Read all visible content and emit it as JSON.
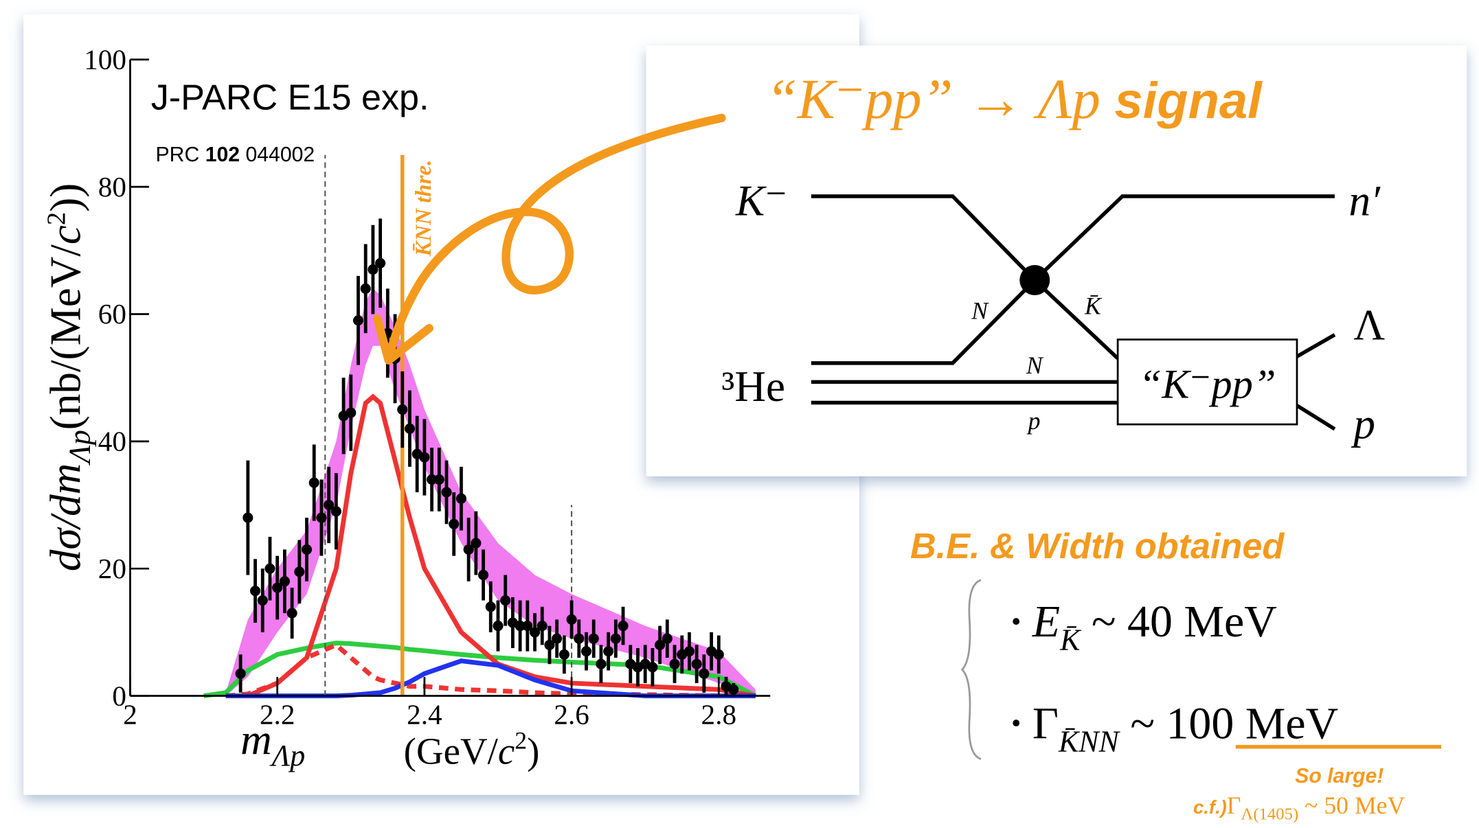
{
  "chart_data": {
    "type": "scatter",
    "experiment": "J-PARC E15 exp.",
    "reference": {
      "journal": "PRC",
      "volume": "102",
      "page": "044002"
    },
    "y_label": {
      "main": "dσ/dm",
      "sub": "Λp",
      "unit_open": "(nb/(MeV/",
      "c": "c",
      "sup": "2",
      "unit_close": "))"
    },
    "x_label": {
      "main": "m",
      "sub": "Λp",
      "unit_open": "(GeV/",
      "c": "c",
      "sup": "2",
      "unit_close": ")"
    },
    "xlim": [
      2,
      2.87
    ],
    "ylim": [
      0,
      100
    ],
    "xticks": [
      2,
      2.2,
      2.4,
      2.6,
      2.8
    ],
    "yticks": [
      0,
      20,
      40,
      60,
      80,
      100
    ],
    "color": "#000000",
    "x": [
      2.15,
      2.16,
      2.17,
      2.18,
      2.19,
      2.2,
      2.21,
      2.22,
      2.23,
      2.24,
      2.25,
      2.26,
      2.27,
      2.28,
      2.29,
      2.3,
      2.31,
      2.32,
      2.33,
      2.34,
      2.35,
      2.36,
      2.37,
      2.38,
      2.39,
      2.4,
      2.41,
      2.42,
      2.43,
      2.44,
      2.45,
      2.46,
      2.47,
      2.48,
      2.49,
      2.5,
      2.51,
      2.52,
      2.53,
      2.54,
      2.55,
      2.56,
      2.57,
      2.58,
      2.59,
      2.6,
      2.61,
      2.62,
      2.63,
      2.64,
      2.65,
      2.66,
      2.67,
      2.68,
      2.69,
      2.7,
      2.71,
      2.72,
      2.73,
      2.74,
      2.75,
      2.76,
      2.77,
      2.78,
      2.79,
      2.8,
      2.81,
      2.82
    ],
    "values": [
      3.5,
      28,
      16.5,
      15,
      20,
      17,
      18,
      13,
      19.5,
      23,
      33.5,
      28,
      30,
      29,
      44,
      44.5,
      59,
      64,
      67,
      68,
      57,
      53,
      45,
      42,
      38,
      37.5,
      34,
      34,
      32,
      27,
      31,
      23,
      24,
      19,
      14,
      11,
      15,
      11.5,
      11,
      11,
      10,
      11,
      8,
      9,
      6.5,
      12,
      9,
      7,
      9,
      5,
      7,
      9,
      11,
      5,
      4.5,
      5,
      4.5,
      8,
      9,
      5,
      6.5,
      7,
      5,
      3.5,
      7,
      6.5,
      1.5,
      1
    ],
    "errors": [
      3,
      9,
      5,
      5,
      5,
      5,
      5,
      4,
      5,
      5,
      6,
      6,
      6,
      6,
      6,
      6,
      7,
      7,
      7,
      7,
      7,
      7,
      6,
      6,
      6,
      6,
      5,
      5,
      5,
      5,
      5,
      5,
      5,
      4,
      4,
      4,
      4,
      4,
      4,
      4,
      3,
      3,
      3,
      3,
      3,
      3,
      3,
      3,
      3,
      3,
      3,
      3,
      3,
      3,
      3,
      3,
      3,
      3,
      3,
      3,
      3,
      3,
      3,
      3,
      3,
      3,
      1.5,
      1
    ],
    "band": {
      "color": "#f07cf0",
      "x": [
        2.13,
        2.16,
        2.2,
        2.24,
        2.28,
        2.3,
        2.32,
        2.33,
        2.34,
        2.36,
        2.38,
        2.4,
        2.45,
        2.5,
        2.55,
        2.6,
        2.7,
        2.8,
        2.85
      ],
      "lower": [
        0,
        3,
        10,
        16,
        30,
        42,
        52,
        55,
        55,
        48,
        42,
        36,
        24,
        15,
        11,
        9,
        6,
        2,
        0
      ],
      "upper": [
        0.5,
        12,
        20,
        26,
        40,
        52,
        62,
        64,
        63,
        58,
        52,
        45,
        32,
        24,
        19,
        16,
        11,
        7,
        1
      ]
    },
    "curves": [
      {
        "color": "#2ecc40",
        "dashed": false,
        "x": [
          2.1,
          2.13,
          2.16,
          2.2,
          2.24,
          2.28,
          2.3,
          2.32,
          2.33,
          2.34,
          2.36,
          2.38,
          2.4,
          2.45,
          2.5,
          2.55,
          2.6,
          2.7,
          2.8,
          2.85
        ],
        "values": [
          0,
          0.5,
          4,
          6.5,
          7.5,
          8.3,
          8.2,
          8,
          7.9,
          7.8,
          7.6,
          7.3,
          7.1,
          6.5,
          6,
          5.6,
          5.3,
          4.8,
          3,
          0
        ]
      },
      {
        "color": "#ee3333",
        "dashed": false,
        "x": [
          2.13,
          2.16,
          2.2,
          2.24,
          2.28,
          2.3,
          2.32,
          2.33,
          2.34,
          2.36,
          2.38,
          2.4,
          2.45,
          2.5,
          2.55,
          2.6,
          2.7,
          2.8,
          2.85
        ],
        "values": [
          0,
          0,
          2,
          6,
          20,
          35,
          46,
          47,
          46,
          37,
          28,
          20,
          10,
          5,
          3,
          2,
          1.5,
          1,
          0
        ]
      },
      {
        "color": "#ee3333",
        "dashed": true,
        "x": [
          2.13,
          2.16,
          2.2,
          2.24,
          2.28,
          2.3,
          2.32,
          2.33,
          2.34,
          2.36,
          2.38,
          2.4,
          2.45,
          2.5,
          2.55,
          2.6,
          2.7,
          2.8,
          2.85
        ],
        "values": [
          0,
          0.3,
          2,
          6,
          8,
          6,
          4,
          3,
          2.5,
          2,
          1.5,
          1.5,
          1,
          0.8,
          0.5,
          0.3,
          0.2,
          0,
          0
        ]
      },
      {
        "color": "#2233ee",
        "dashed": false,
        "x": [
          2.13,
          2.16,
          2.2,
          2.24,
          2.28,
          2.3,
          2.32,
          2.33,
          2.34,
          2.36,
          2.38,
          2.4,
          2.45,
          2.5,
          2.55,
          2.6,
          2.7,
          2.8,
          2.85
        ],
        "values": [
          0,
          0,
          0,
          0,
          0,
          0.1,
          0.3,
          0.4,
          0.5,
          1.2,
          2.2,
          3.5,
          5.5,
          4.8,
          2.5,
          0.8,
          0,
          0,
          0
        ]
      }
    ],
    "vlines": [
      {
        "x": 2.265,
        "top": 85
      },
      {
        "x": 2.6,
        "top": 30
      }
    ],
    "threshold": {
      "x": 2.37,
      "top": 85,
      "color": "#f39a1e",
      "label": "K̄NN thre."
    }
  },
  "diagram": {
    "title": {
      "quote": "“K⁻pp” → Λp",
      "word": "signal"
    },
    "k_minus": "K⁻",
    "n_prime": "n′",
    "vertex_n": "N",
    "vertex_kbar": "K̄",
    "helium": "³He",
    "line_n": "N",
    "line_p": "p",
    "box": "“K⁻pp”",
    "lambda": "Λ",
    "proton": "p"
  },
  "results": {
    "heading": "B.E. & Width obtained",
    "bullet": "•",
    "energy": {
      "symbol": "E",
      "sub": "K̄",
      "rest": "~ 40 MeV"
    },
    "width": {
      "symbol": "Γ",
      "sub": "K̄NN",
      "tilde": "~",
      "value": "100 MeV"
    },
    "remark": "So large!",
    "compare": {
      "prefix": "c.f.)",
      "symbol": "Γ",
      "sub": "Λ(1405)",
      "rest": "~ 50 MeV"
    }
  }
}
